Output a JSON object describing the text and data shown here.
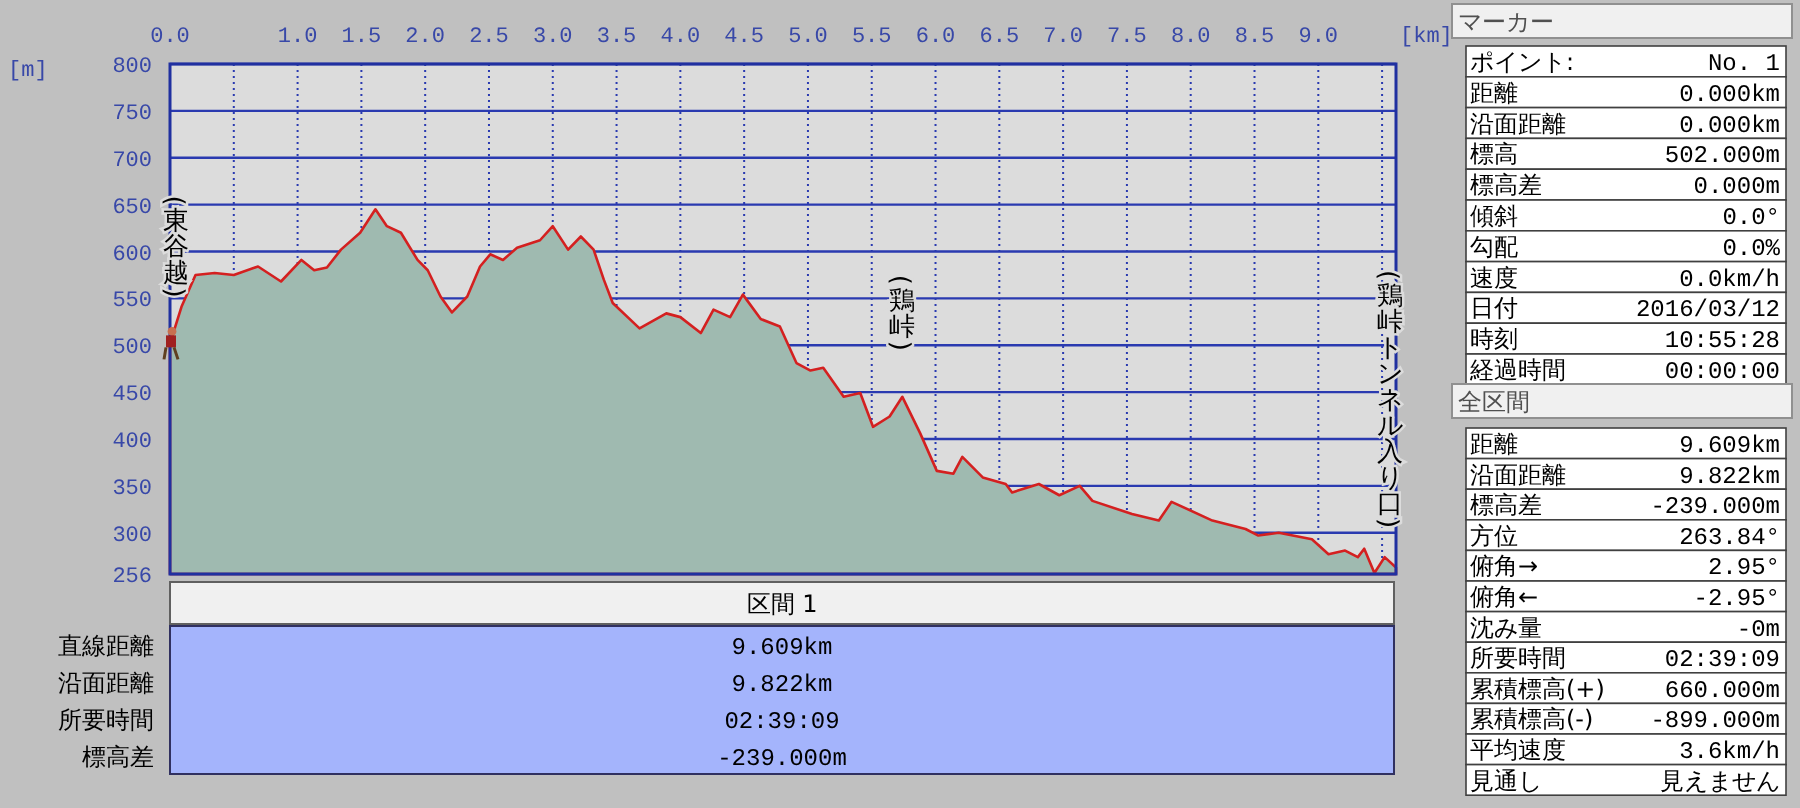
{
  "chart_data": [
    {
      "type": "area",
      "xlabel": "[km]",
      "ylabel": "[m]",
      "xlim": [
        0,
        9.609
      ],
      "ylim": [
        256,
        800
      ],
      "xticks": [
        {
          "value": 0,
          "label": "0.0"
        },
        {
          "value": 0.5,
          "label": null
        },
        {
          "value": 1,
          "label": "1.0"
        },
        {
          "value": 1.5,
          "label": "1.5"
        },
        {
          "value": 2,
          "label": "2.0"
        },
        {
          "value": 2.5,
          "label": "2.5"
        },
        {
          "value": 3,
          "label": "3.0"
        },
        {
          "value": 3.5,
          "label": "3.5"
        },
        {
          "value": 4,
          "label": "4.0"
        },
        {
          "value": 4.5,
          "label": "4.5"
        },
        {
          "value": 5,
          "label": "5.0"
        },
        {
          "value": 5.5,
          "label": "5.5"
        },
        {
          "value": 6,
          "label": "6.0"
        },
        {
          "value": 6.5,
          "label": "6.5"
        },
        {
          "value": 7,
          "label": "7.0"
        },
        {
          "value": 7.5,
          "label": "7.5"
        },
        {
          "value": 8,
          "label": "8.0"
        },
        {
          "value": 8.5,
          "label": "8.5"
        },
        {
          "value": 9,
          "label": "9.0"
        },
        {
          "value": 9.5,
          "label": null
        }
      ],
      "yticks": [
        256,
        300,
        350,
        400,
        450,
        500,
        550,
        600,
        650,
        700,
        750,
        800
      ],
      "grid": true,
      "series": [
        {
          "color": "#d42020",
          "x": [
            0,
            0.09,
            0.2,
            0.35,
            0.5,
            0.69,
            0.87,
            1.03,
            1.13,
            1.23,
            1.34,
            1.49,
            1.61,
            1.7,
            1.81,
            1.94,
            2.02,
            2.12,
            2.21,
            2.33,
            2.43,
            2.51,
            2.61,
            2.72,
            2.9,
            3.0,
            3.12,
            3.22,
            3.32,
            3.4,
            3.47,
            3.68,
            3.89,
            4.0,
            4.16,
            4.26,
            4.39,
            4.49,
            4.63,
            4.78,
            4.91,
            5.02,
            5.12,
            5.28,
            5.41,
            5.51,
            5.64,
            5.74,
            5.88,
            6.01,
            6.14,
            6.21,
            6.37,
            6.55,
            6.6,
            6.81,
            6.97,
            7.13,
            7.23,
            7.54,
            7.75,
            7.85,
            8.17,
            8.43,
            8.53,
            8.69,
            8.95,
            9.08,
            9.21,
            9.31,
            9.36,
            9.44,
            9.52,
            9.609
          ],
          "values": [
            502,
            541,
            575,
            577,
            575,
            584,
            568,
            591,
            580,
            583,
            602,
            620,
            645,
            627,
            620,
            591,
            580,
            552,
            535,
            552,
            584,
            597,
            591,
            604,
            612,
            627,
            602,
            616,
            602,
            570,
            545,
            518,
            534,
            530,
            513,
            538,
            530,
            554,
            528,
            520,
            481,
            473,
            476,
            445,
            449,
            413,
            424,
            445,
            406,
            366,
            363,
            381,
            359,
            352,
            343,
            352,
            340,
            350,
            334,
            320,
            313,
            333,
            313,
            304,
            297,
            300,
            293,
            277,
            281,
            274,
            283,
            257,
            274,
            263
          ]
        }
      ],
      "annotations": [
        {
          "text": "(東谷越)",
          "x": 0,
          "y": 502
        },
        {
          "text": "(鶏峠)",
          "x": 5.74,
          "y": 445
        },
        "(鶏峠トンネル入り口)"
      ]
    },
    {
      "type": "other",
      "title": "マーカー",
      "annotations": [
        "ポイント:",
        "No. 1",
        "距離",
        "0.000km",
        "沿面距離",
        "0.000km",
        "標高",
        "502.000m",
        "標高差",
        "0.000m",
        "傾斜",
        "0.0°",
        "勾配",
        "0.0%",
        "速度",
        "0.0km/h",
        "日付",
        "2016/03/12",
        "時刻",
        "10:55:28",
        "経過時間",
        "00:00:00"
      ]
    },
    {
      "type": "other",
      "title": "全区間",
      "annotations": [
        "距離",
        "9.609km",
        "沿面距離",
        "9.822km",
        "標高差",
        "-239.000m",
        "方位",
        "263.84°",
        "俯角→",
        "2.95°",
        "俯角←",
        "-2.95°",
        "沈み量",
        "-0m",
        "所要時間",
        "02:39:09",
        "累積標高(+)",
        "660.000m",
        "累積標高(-)",
        "-899.000m",
        "平均速度",
        "3.6km/h",
        "見通し",
        "見えません"
      ]
    },
    {
      "type": "other",
      "title": "区間 1",
      "annotations": [
        "直線距離",
        "9.609km",
        "沿面距離",
        "9.822km",
        "所要時間",
        "02:39:09",
        "標高差",
        "-239.000m"
      ]
    }
  ]
}
